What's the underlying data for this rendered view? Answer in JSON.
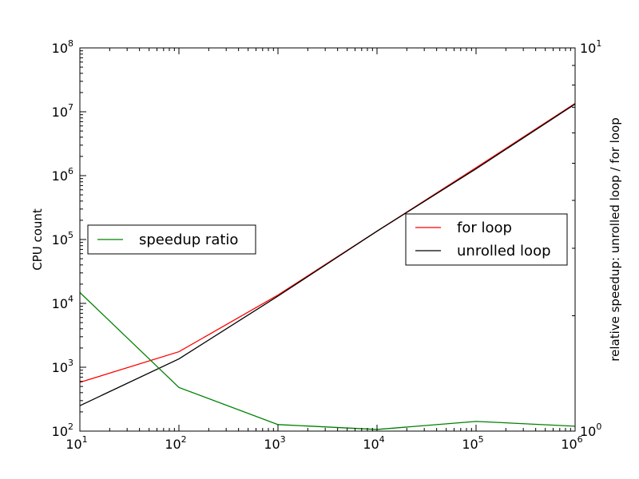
{
  "chart_data": {
    "type": "line",
    "xlabel": "",
    "ylabel_left": "CPU count",
    "ylabel_right": "relative speedup: unrolled loop / for loop",
    "x_scale": "log",
    "y_left_scale": "log",
    "y_right_scale": "log",
    "xlim": [
      10,
      1000000
    ],
    "ylim_left": [
      100,
      100000000
    ],
    "ylim_right": [
      1,
      10
    ],
    "x_ticks": [
      {
        "base": "10",
        "exp": "1",
        "value": 10
      },
      {
        "base": "10",
        "exp": "2",
        "value": 100
      },
      {
        "base": "10",
        "exp": "3",
        "value": 1000
      },
      {
        "base": "10",
        "exp": "4",
        "value": 10000
      },
      {
        "base": "10",
        "exp": "5",
        "value": 100000
      },
      {
        "base": "10",
        "exp": "6",
        "value": 1000000
      }
    ],
    "y_left_ticks": [
      {
        "base": "10",
        "exp": "2",
        "value": 100
      },
      {
        "base": "10",
        "exp": "3",
        "value": 1000
      },
      {
        "base": "10",
        "exp": "4",
        "value": 10000
      },
      {
        "base": "10",
        "exp": "5",
        "value": 100000
      },
      {
        "base": "10",
        "exp": "6",
        "value": 1000000
      },
      {
        "base": "10",
        "exp": "7",
        "value": 10000000
      },
      {
        "base": "10",
        "exp": "8",
        "value": 100000000
      }
    ],
    "y_right_ticks": [
      {
        "base": "10",
        "exp": "0",
        "value": 1
      },
      {
        "base": "10",
        "exp": "1",
        "value": 10
      }
    ],
    "grid": false,
    "x": [
      10,
      100,
      1000,
      10000,
      100000,
      1000000
    ],
    "series": [
      {
        "name": "for loop",
        "axis": "left",
        "color": "#ff0000",
        "values": [
          580,
          1750,
          13500,
          135000,
          1330000,
          13500000
        ]
      },
      {
        "name": "unrolled loop",
        "axis": "left",
        "color": "#000000",
        "values": [
          250,
          1350,
          13000,
          135000,
          1280000,
          13200000
        ]
      },
      {
        "name": "speedup ratio",
        "axis": "right",
        "color": "#008000",
        "values": [
          2.3,
          1.3,
          1.04,
          1.01,
          1.06,
          1.03
        ]
      }
    ],
    "legends": [
      {
        "id": "right-series-legend",
        "placement": "center-left",
        "entries": [
          "speedup ratio"
        ]
      },
      {
        "id": "left-series-legend",
        "placement": "center-right",
        "entries": [
          "for loop",
          "unrolled loop"
        ]
      }
    ]
  }
}
